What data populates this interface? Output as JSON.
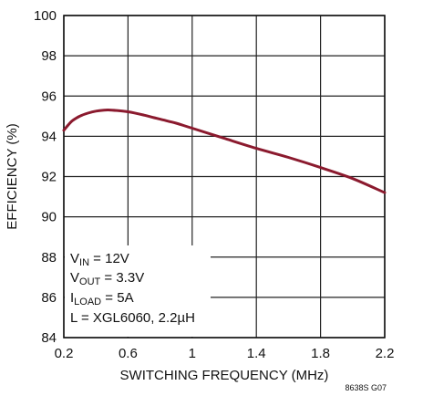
{
  "chart_data": {
    "type": "line",
    "title": "",
    "xlabel": "SWITCHING FREQUENCY (MHz)",
    "ylabel": "EFFICIENCY (%)",
    "xlim": [
      0.2,
      2.2
    ],
    "ylim": [
      84,
      100
    ],
    "x_ticks": [
      0.2,
      0.6,
      1,
      1.4,
      1.8,
      2.2
    ],
    "y_ticks": [
      84,
      86,
      88,
      90,
      92,
      94,
      96,
      98,
      100
    ],
    "x_tick_labels": [
      "0.2",
      "0.6",
      "1",
      "1.4",
      "1.8",
      "2.2"
    ],
    "y_tick_labels": [
      "84",
      "86",
      "88",
      "90",
      "92",
      "94",
      "96",
      "98",
      "100"
    ],
    "grid": true,
    "series": [
      {
        "color": "#8b1a2e",
        "x": [
          0.2,
          0.25,
          0.3,
          0.35,
          0.4,
          0.45,
          0.5,
          0.6,
          0.7,
          0.8,
          0.9,
          1.0,
          1.2,
          1.4,
          1.6,
          1.8,
          2.0,
          2.2
        ],
        "y": [
          94.3,
          94.75,
          95.0,
          95.15,
          95.25,
          95.3,
          95.3,
          95.22,
          95.05,
          94.85,
          94.65,
          94.4,
          93.9,
          93.4,
          92.95,
          92.45,
          91.9,
          91.2
        ]
      }
    ],
    "annotation": {
      "vin": {
        "main": "V",
        "sub": "IN",
        "rest": " = 12V"
      },
      "vout": {
        "main": "V",
        "sub": "OUT",
        "rest": " = 3.3V"
      },
      "iload": {
        "main": "I",
        "sub": "LOAD",
        "rest": " = 5A"
      },
      "inductor": "L = XGL6060, 2.2µH"
    },
    "figure_id": "8638S G07"
  }
}
